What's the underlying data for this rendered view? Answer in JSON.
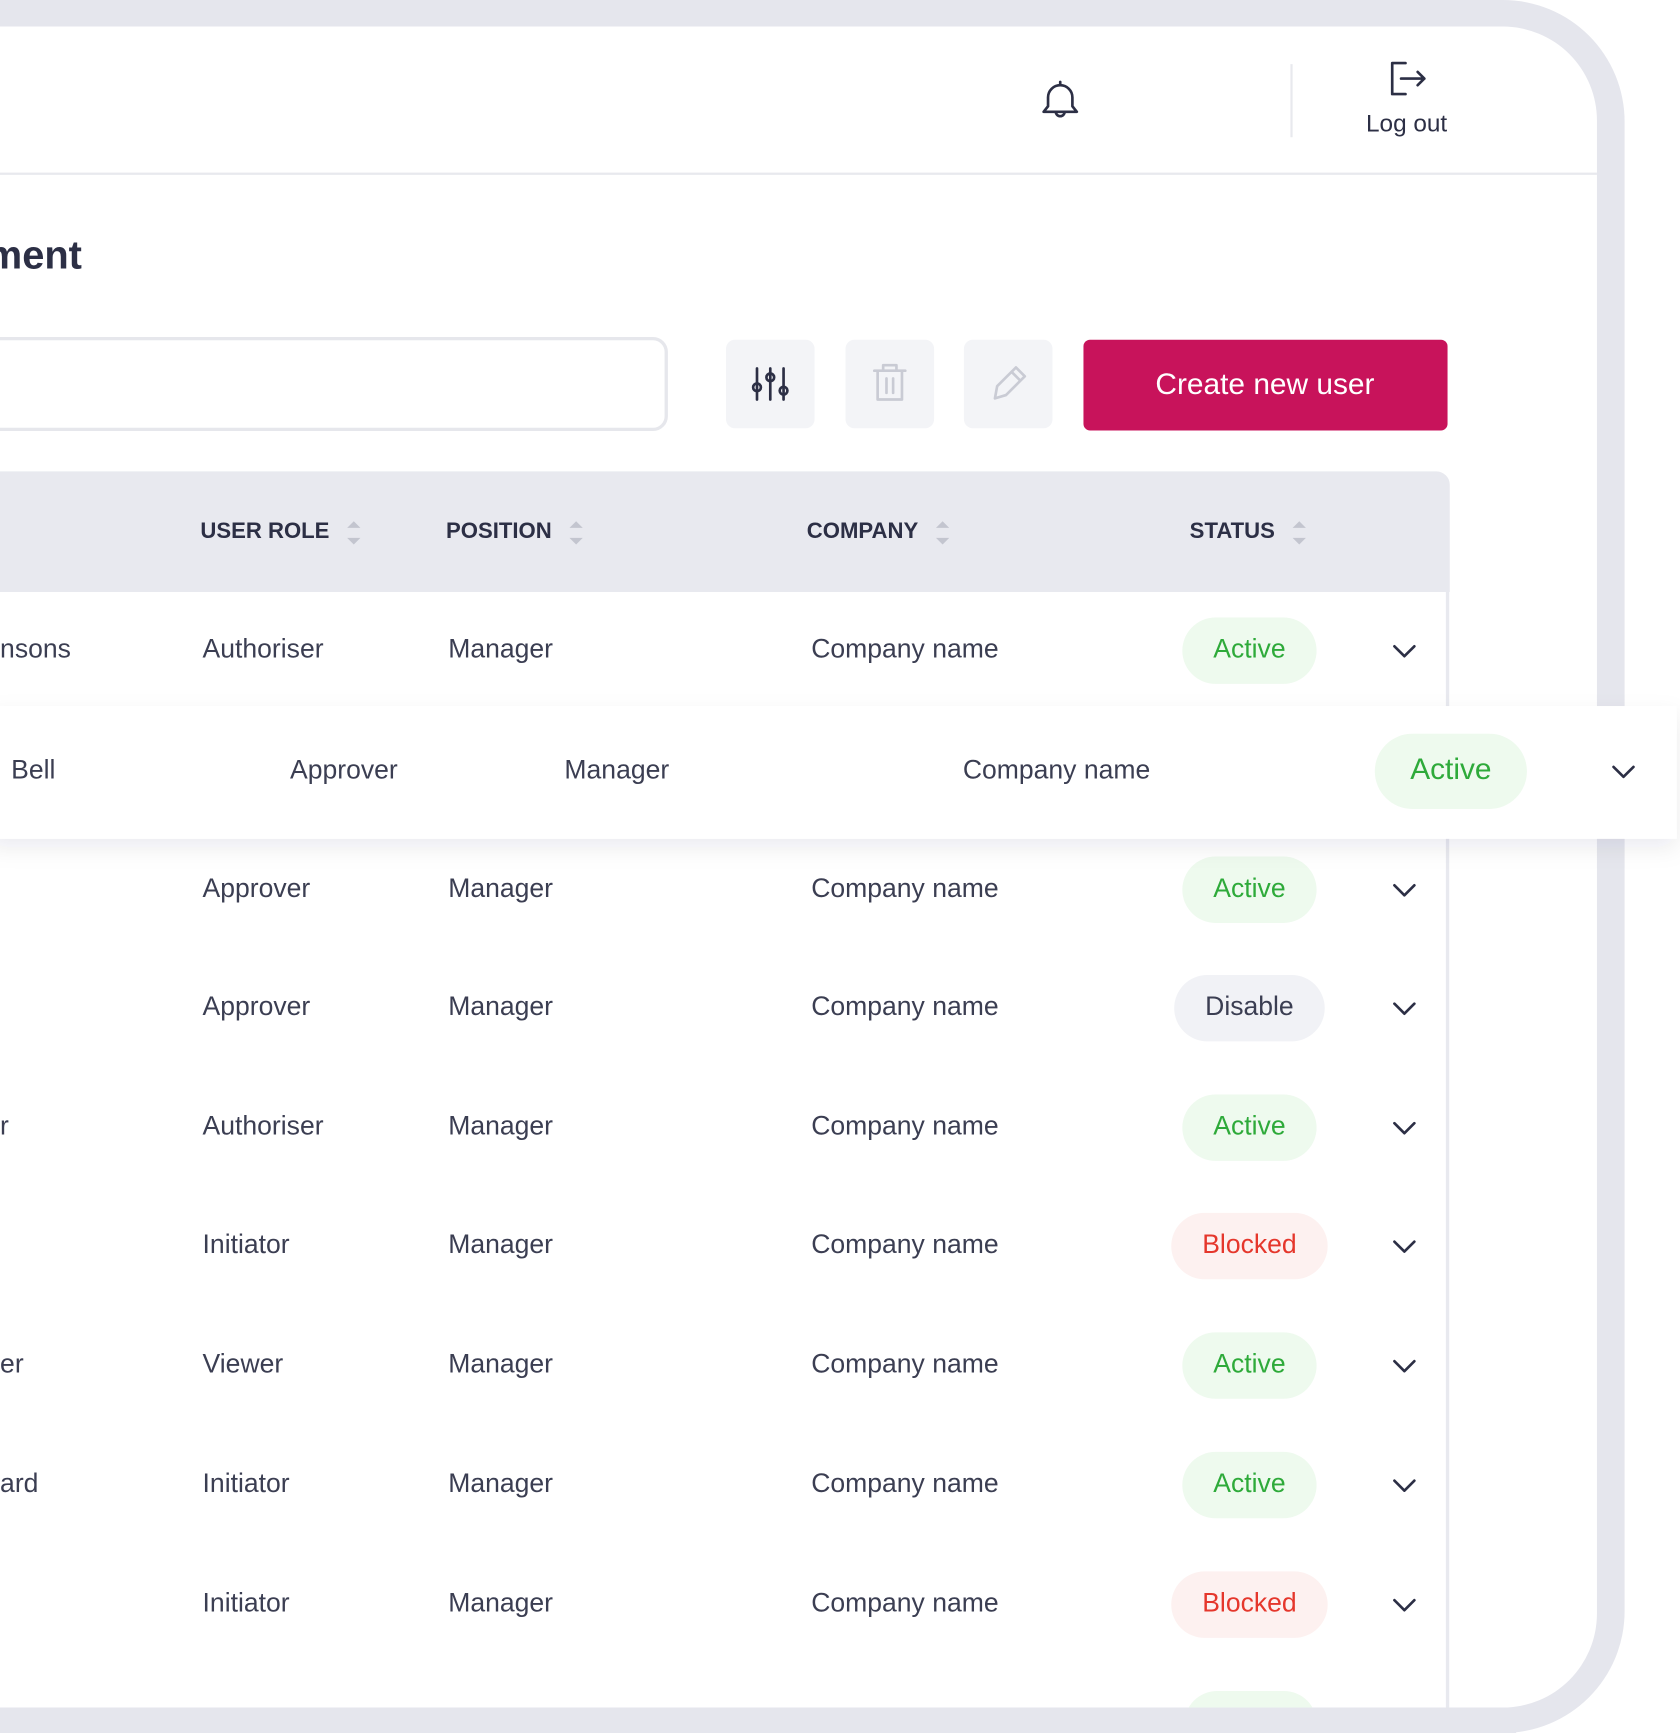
{
  "header": {
    "logout": "Log out"
  },
  "page_title": "ment",
  "toolbar": {
    "create_button": "Create new user"
  },
  "table": {
    "columns": [
      "USER ROLE",
      "POSITION",
      "COMPANY",
      "STATUS"
    ],
    "highlighted_row": 1,
    "rows": [
      {
        "name": "nsons",
        "role": "Authoriser",
        "position": "Manager",
        "company": "Company name",
        "status": {
          "text": "Active",
          "color": "#2eaa3a",
          "background": "#eefaee"
        }
      },
      {
        "name": "Bell",
        "role": "Approver",
        "position": "Manager",
        "company": "Company name",
        "status": {
          "text": "Active",
          "color": "#2eaa3a",
          "background": "#eefaee"
        }
      },
      {
        "role": "Approver",
        "position": "Manager",
        "company": "Company name",
        "status": {
          "text": "Active",
          "color": "#2eaa3a",
          "background": "#eefaee"
        }
      },
      {
        "role": "Approver",
        "position": "Manager",
        "company": "Company name",
        "status": {
          "text": "Disable",
          "color": "#3b3e52",
          "background": "#f1f2f6"
        }
      },
      {
        "name": "r",
        "role": "Authoriser",
        "position": "Manager",
        "company": "Company name",
        "status": {
          "text": "Active",
          "color": "#2eaa3a",
          "background": "#eefaee"
        }
      },
      {
        "role": "Initiator",
        "position": "Manager",
        "company": "Company name",
        "status": {
          "text": "Blocked",
          "color": "#e5372c",
          "background": "#fdf1f0"
        }
      },
      {
        "name": "er",
        "role": "Viewer",
        "position": "Manager",
        "company": "Company name",
        "status": {
          "text": "Active",
          "color": "#2eaa3a",
          "background": "#eefaee"
        }
      },
      {
        "name": "ard",
        "role": "Initiator",
        "position": "Manager",
        "company": "Company name",
        "status": {
          "text": "Active",
          "color": "#2eaa3a",
          "background": "#eefaee"
        }
      },
      {
        "role": "Initiator",
        "position": "Manager",
        "company": "Company name",
        "status": {
          "text": "Blocked",
          "color": "#e5372c",
          "background": "#fdf1f0"
        }
      }
    ]
  }
}
